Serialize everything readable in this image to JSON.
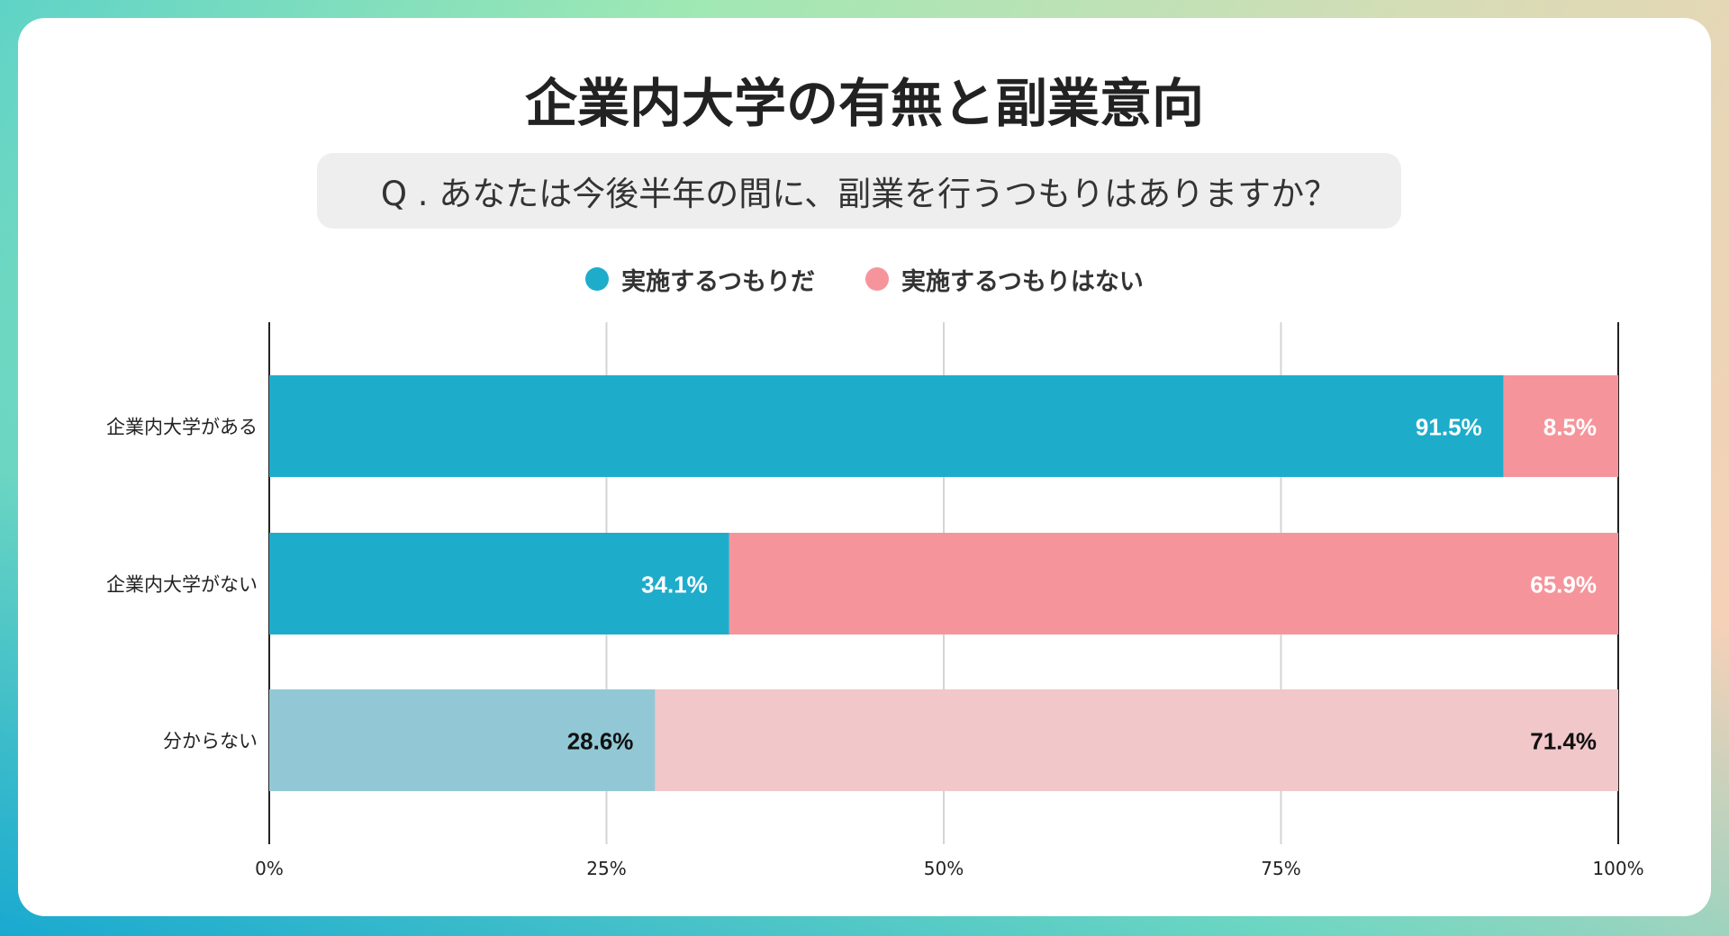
{
  "title": "企業内大学の有無と副業意向",
  "question": "Q . あなたは今後半年の間に、副業を行うつもりはありますか？",
  "legend": [
    {
      "label": "実施するつもりだ",
      "color": "#1eaccb"
    },
    {
      "label": "実施するつもりはない",
      "color": "#f5959b"
    }
  ],
  "chart_data": {
    "type": "bar",
    "orientation": "horizontal",
    "stacked": true,
    "title": "企業内大学の有無と副業意向",
    "categories": [
      "企業内大学がある",
      "企業内大学がない",
      "分からない"
    ],
    "series": [
      {
        "name": "実施するつもりだ",
        "values": [
          91.5,
          34.1,
          28.6
        ],
        "labels": [
          "91.5%",
          "34.1%",
          "28.6%"
        ]
      },
      {
        "name": "実施するつもりはない",
        "values": [
          8.5,
          65.9,
          71.4
        ],
        "labels": [
          "8.5%",
          "65.9%",
          "71.4%"
        ]
      }
    ],
    "xlim": [
      0,
      100
    ],
    "xticks": [
      "0%",
      "25%",
      "50%",
      "75%",
      "100%"
    ],
    "grid": true,
    "legend_position": "top",
    "colors": {
      "series0": [
        "#1eaccb",
        "#1eaccb",
        "#92c8d5"
      ],
      "series1": [
        "#f5959b",
        "#f5959b",
        "#f1c7ca"
      ],
      "label_light": "#ffffff",
      "label_dark": "#111111"
    }
  }
}
